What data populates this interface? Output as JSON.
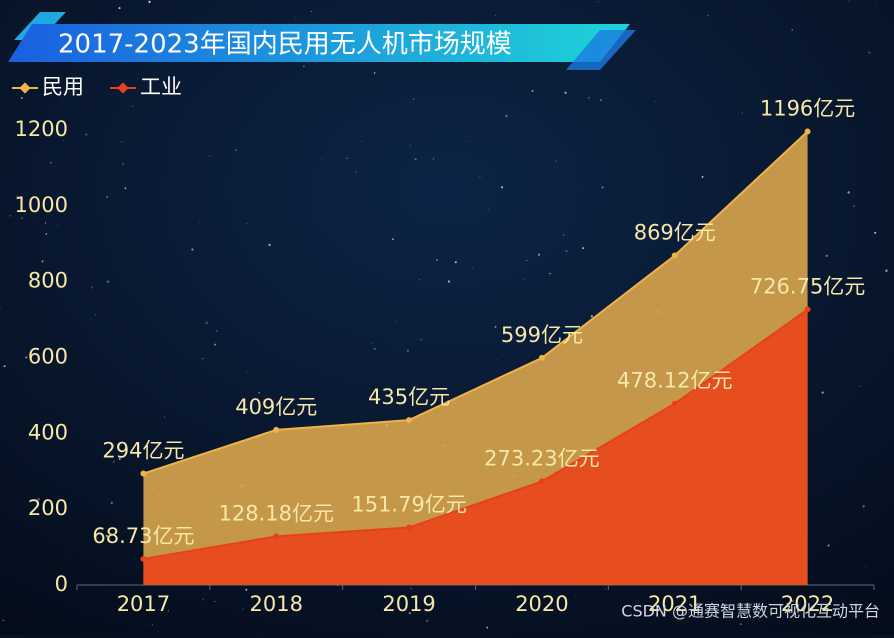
{
  "chart_data": {
    "type": "area",
    "title": "2017-2023年国内民用无人机市场规模",
    "categories": [
      "2017",
      "2018",
      "2019",
      "2020",
      "2021",
      "2022"
    ],
    "series": [
      {
        "name": "民用",
        "color": "#f0b347",
        "fill": "#d9a54c",
        "values": [
          294,
          409,
          435,
          599,
          869,
          1196
        ],
        "value_labels": [
          "294亿元",
          "409亿元",
          "435亿元",
          "599亿元",
          "869亿元",
          "1196亿元"
        ]
      },
      {
        "name": "工业",
        "color": "#e8401c",
        "fill": "#e84a1f",
        "values": [
          68.73,
          128.18,
          151.79,
          273.23,
          478.12,
          726.75
        ],
        "value_labels": [
          "68.73亿元",
          "128.18亿元",
          "151.79亿元",
          "273.23亿元",
          "478.12亿元",
          "726.75亿元"
        ]
      }
    ],
    "ylim": [
      0,
      1200
    ],
    "yticks": [
      0,
      200,
      400,
      600,
      800,
      1000,
      1200
    ],
    "legend": "top-left",
    "watermark": "CSDN @通赛智慧数可视化互动平台"
  }
}
